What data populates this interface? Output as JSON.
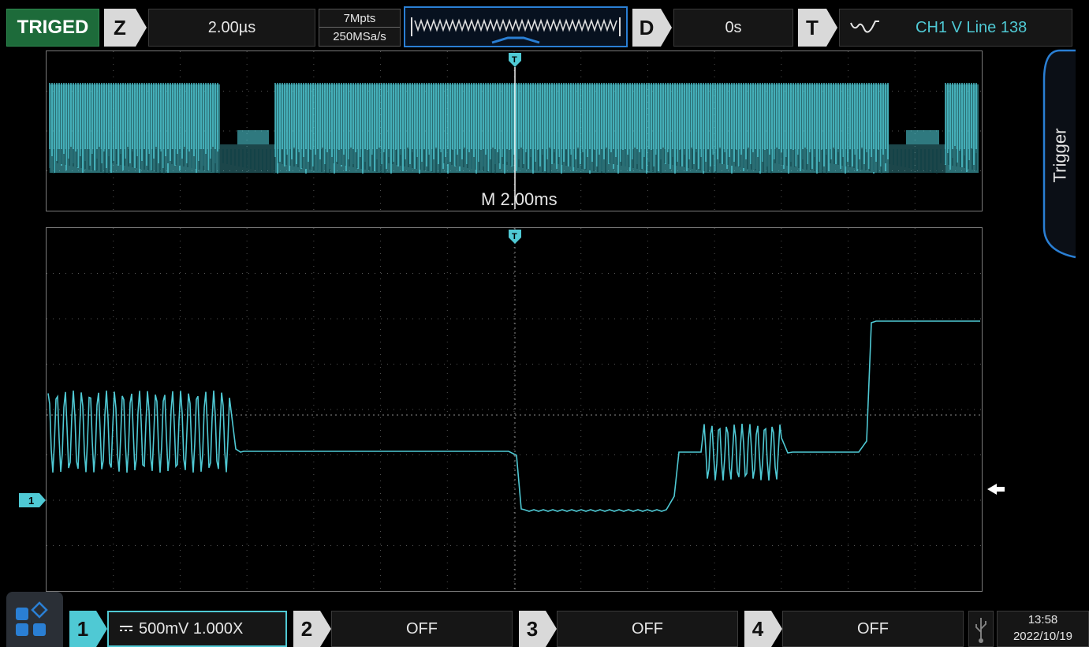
{
  "topbar": {
    "status": "TRIGED",
    "zoom_key": "Z",
    "timebase": "2.00µs",
    "memory_depth": "7Mpts",
    "sample_rate": "250MSa/s",
    "delay_key": "D",
    "delay": "0s",
    "trigger_key": "T",
    "trigger_info": "CH1 V Line 138"
  },
  "side_tab": {
    "label": "Trigger"
  },
  "main_window": {
    "horizontal_label": "M  2.00ms"
  },
  "channels": [
    {
      "number": "1",
      "value": "500mV 1.000X",
      "state": "on"
    },
    {
      "number": "2",
      "value": "OFF",
      "state": "off"
    },
    {
      "number": "3",
      "value": "OFF",
      "state": "off"
    },
    {
      "number": "4",
      "value": "OFF",
      "state": "off"
    }
  ],
  "clock": {
    "time": "13:58",
    "date": "2022/10/19"
  },
  "colors": {
    "ch1": "#4fc9d4",
    "accent": "#2a7fd4",
    "status": "#1d6b3a"
  },
  "icons": {
    "trigger_marker": "T",
    "channel_marker": "1",
    "edge": "edge-icon",
    "home": "home-menu-icon",
    "usb": "usb-icon"
  }
}
